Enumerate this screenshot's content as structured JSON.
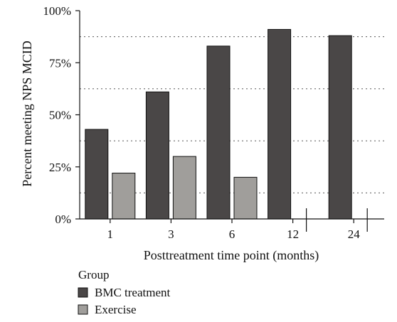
{
  "chart_data": {
    "type": "bar",
    "xlabel": "Posttreatment time point (months)",
    "ylabel": "Percent meeting NPS MCID",
    "ylim": [
      0,
      100
    ],
    "yticks": [
      "0%",
      "25%",
      "50%",
      "75%",
      "100%"
    ],
    "ytick_values": [
      0,
      25,
      50,
      75,
      100
    ],
    "categories": [
      "1",
      "3",
      "6",
      "12",
      "24"
    ],
    "series": [
      {
        "name": "BMC treatment",
        "color": "#4a4747",
        "values": [
          43,
          61,
          83,
          91,
          88
        ]
      },
      {
        "name": "Exercise",
        "color": "#a09e9b",
        "values": [
          22,
          30,
          20,
          null,
          null
        ]
      }
    ],
    "gridlines": [
      12.5,
      37.5,
      62.5,
      87.5
    ],
    "grid_style": "dotted",
    "legend": {
      "title": "Group",
      "position": "bottom-left"
    }
  }
}
